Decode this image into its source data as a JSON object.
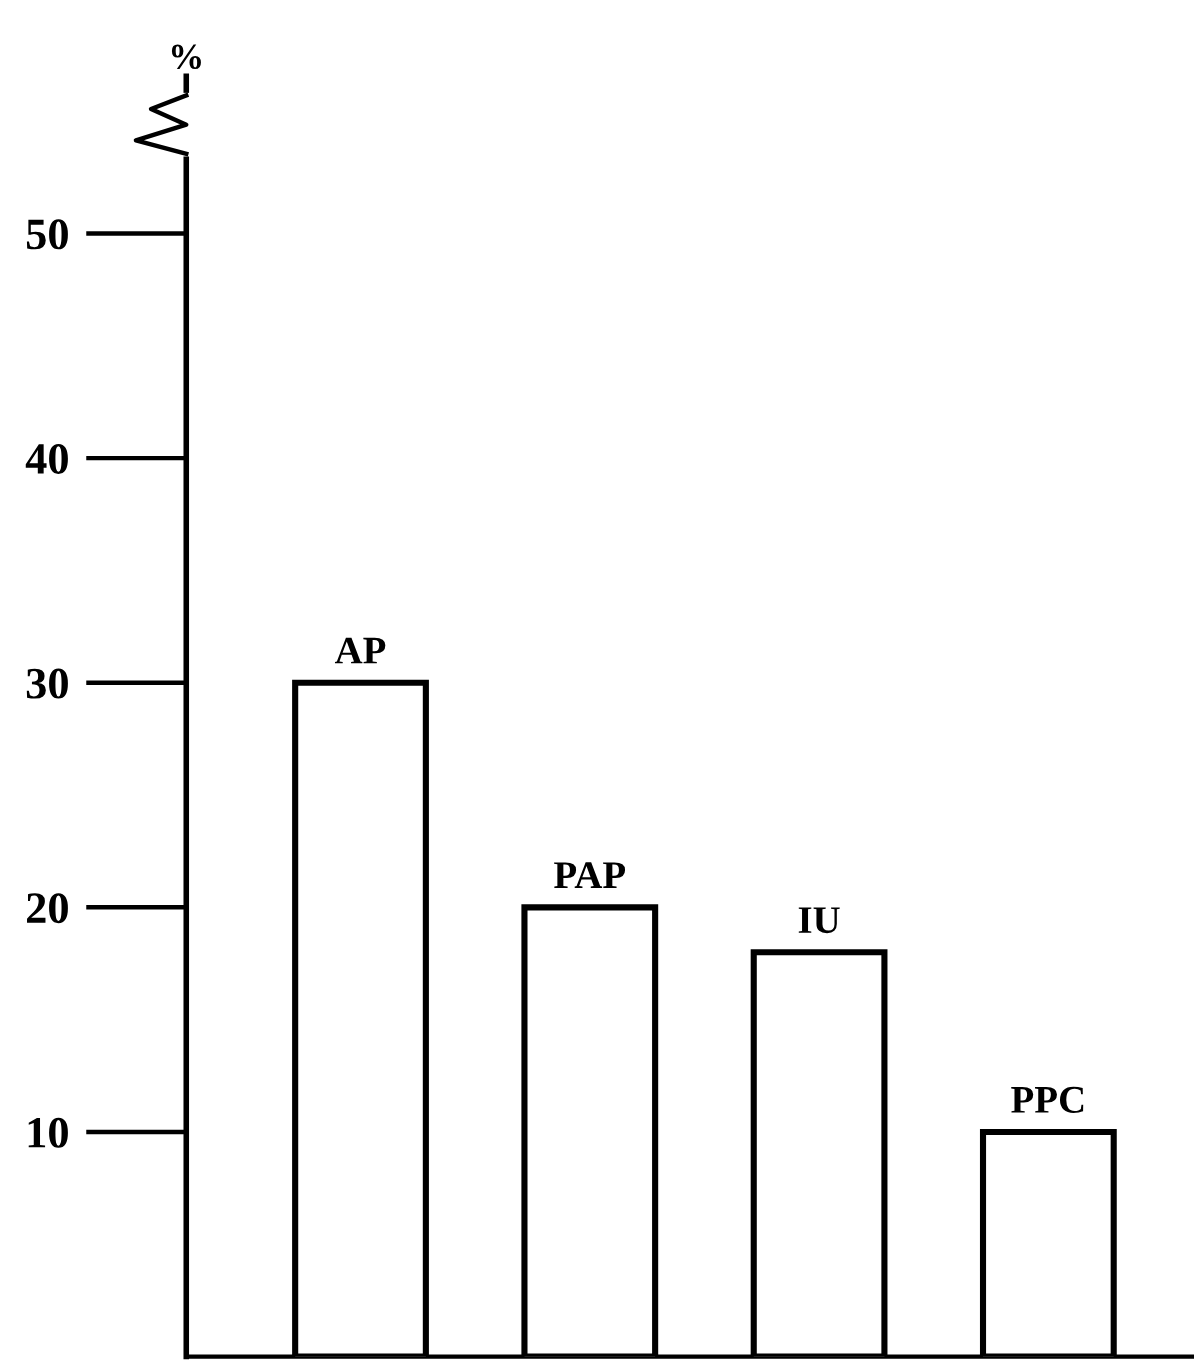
{
  "chart_data": {
    "type": "bar",
    "ylabel": "%",
    "categories": [
      "AP",
      "PAP",
      "IU",
      "PPC"
    ],
    "values": [
      30,
      20,
      18,
      10
    ],
    "color": "#ffffff",
    "ylim": [
      0,
      57
    ],
    "yticks": [
      10,
      20,
      30,
      40,
      50
    ],
    "grid": false,
    "legend": false
  }
}
